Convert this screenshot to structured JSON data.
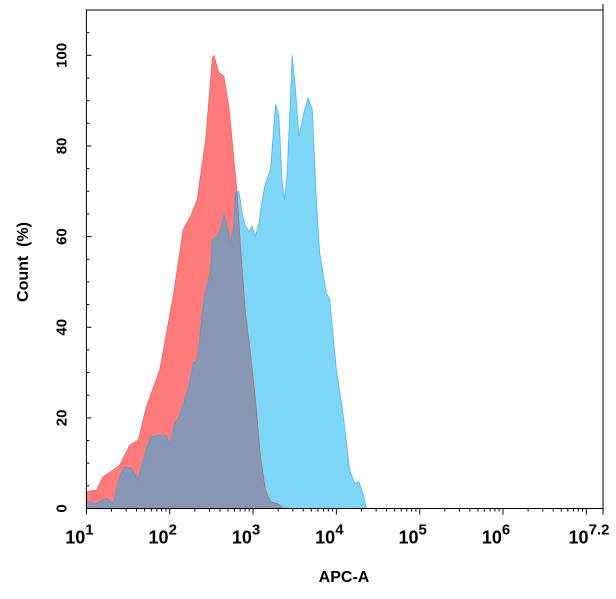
{
  "chart_data": {
    "type": "area",
    "title": "",
    "xlabel": "APC-A",
    "ylabel": "Count  (%)",
    "x_scale": "log10",
    "xlim_log10": [
      1,
      7.2
    ],
    "ylim": [
      0,
      110
    ],
    "x_ticks": [
      {
        "exp": 1,
        "base": "10",
        "sup": "1"
      },
      {
        "exp": 2,
        "base": "10",
        "sup": "2"
      },
      {
        "exp": 3,
        "base": "10",
        "sup": "3"
      },
      {
        "exp": 4,
        "base": "10",
        "sup": "4"
      },
      {
        "exp": 5,
        "base": "10",
        "sup": "5"
      },
      {
        "exp": 6,
        "base": "10",
        "sup": "6"
      },
      {
        "exp": 7.2,
        "base": "10",
        "sup": "7.2"
      }
    ],
    "y_ticks": [
      "0",
      "20",
      "40",
      "60",
      "80",
      "100"
    ],
    "grid": false,
    "legend": "none",
    "colors": {
      "red": "#ff7b7b",
      "red_line": "#d43a3a",
      "blue": "#7dd6f6",
      "blue_line": "#2a9fd0",
      "overlap": "#8797b4"
    },
    "series": [
      {
        "color": "red",
        "log10_x": [
          1.0,
          1.12,
          1.2,
          1.32,
          1.4,
          1.52,
          1.62,
          1.72,
          1.88,
          2.04,
          2.16,
          2.25,
          2.33,
          2.43,
          2.51,
          2.53,
          2.59,
          2.65,
          2.71,
          2.81,
          2.85,
          2.91,
          2.97,
          3.03,
          3.09,
          3.15,
          3.21,
          3.29,
          3.35
        ],
        "y": [
          3.7,
          4.1,
          7.0,
          8.5,
          9.6,
          14,
          15.1,
          22.5,
          30.6,
          46.8,
          61.5,
          64.5,
          68.2,
          81.4,
          99.1,
          100,
          96.2,
          95.4,
          88.8,
          69.7,
          57.9,
          43.1,
          34.3,
          24,
          11.4,
          4.1,
          1.5,
          1.1,
          0.4
        ]
      },
      {
        "color": "blue",
        "log10_x": [
          1.0,
          1.12,
          1.24,
          1.32,
          1.4,
          1.46,
          1.54,
          1.62,
          1.72,
          1.78,
          1.88,
          1.96,
          2.0,
          2.06,
          2.12,
          2.24,
          2.28,
          2.33,
          2.41,
          2.49,
          2.51,
          2.57,
          2.61,
          2.65,
          2.69,
          2.73,
          2.77,
          2.79,
          2.83,
          2.87,
          2.91,
          2.95,
          2.99,
          3.03,
          3.07,
          3.11,
          3.15,
          3.21,
          3.27,
          3.31,
          3.35,
          3.38,
          3.41,
          3.47,
          3.51,
          3.55,
          3.61,
          3.66,
          3.71,
          3.76,
          3.8,
          3.88,
          3.92,
          4.0,
          4.08,
          4.16,
          4.22,
          4.27,
          4.32,
          4.36
        ],
        "y": [
          1.5,
          1.1,
          2.3,
          1.1,
          7.0,
          9.2,
          8.9,
          6.3,
          13.3,
          15.9,
          16.2,
          16.2,
          14,
          18.8,
          20.3,
          27.7,
          32.1,
          32.8,
          46.1,
          52.7,
          59.3,
          60.1,
          61.5,
          64.9,
          62.3,
          58.6,
          62.3,
          69.7,
          70,
          65.2,
          62.3,
          61.2,
          62.3,
          60.1,
          63,
          68.2,
          71.9,
          74.8,
          89.2,
          86.6,
          71.9,
          68.2,
          74.1,
          100,
          92.5,
          82.2,
          87.3,
          90.6,
          88.1,
          68.2,
          56.4,
          47.6,
          46.1,
          30.6,
          21,
          8.5,
          5.6,
          5.9,
          3.4,
          0
        ]
      }
    ]
  }
}
